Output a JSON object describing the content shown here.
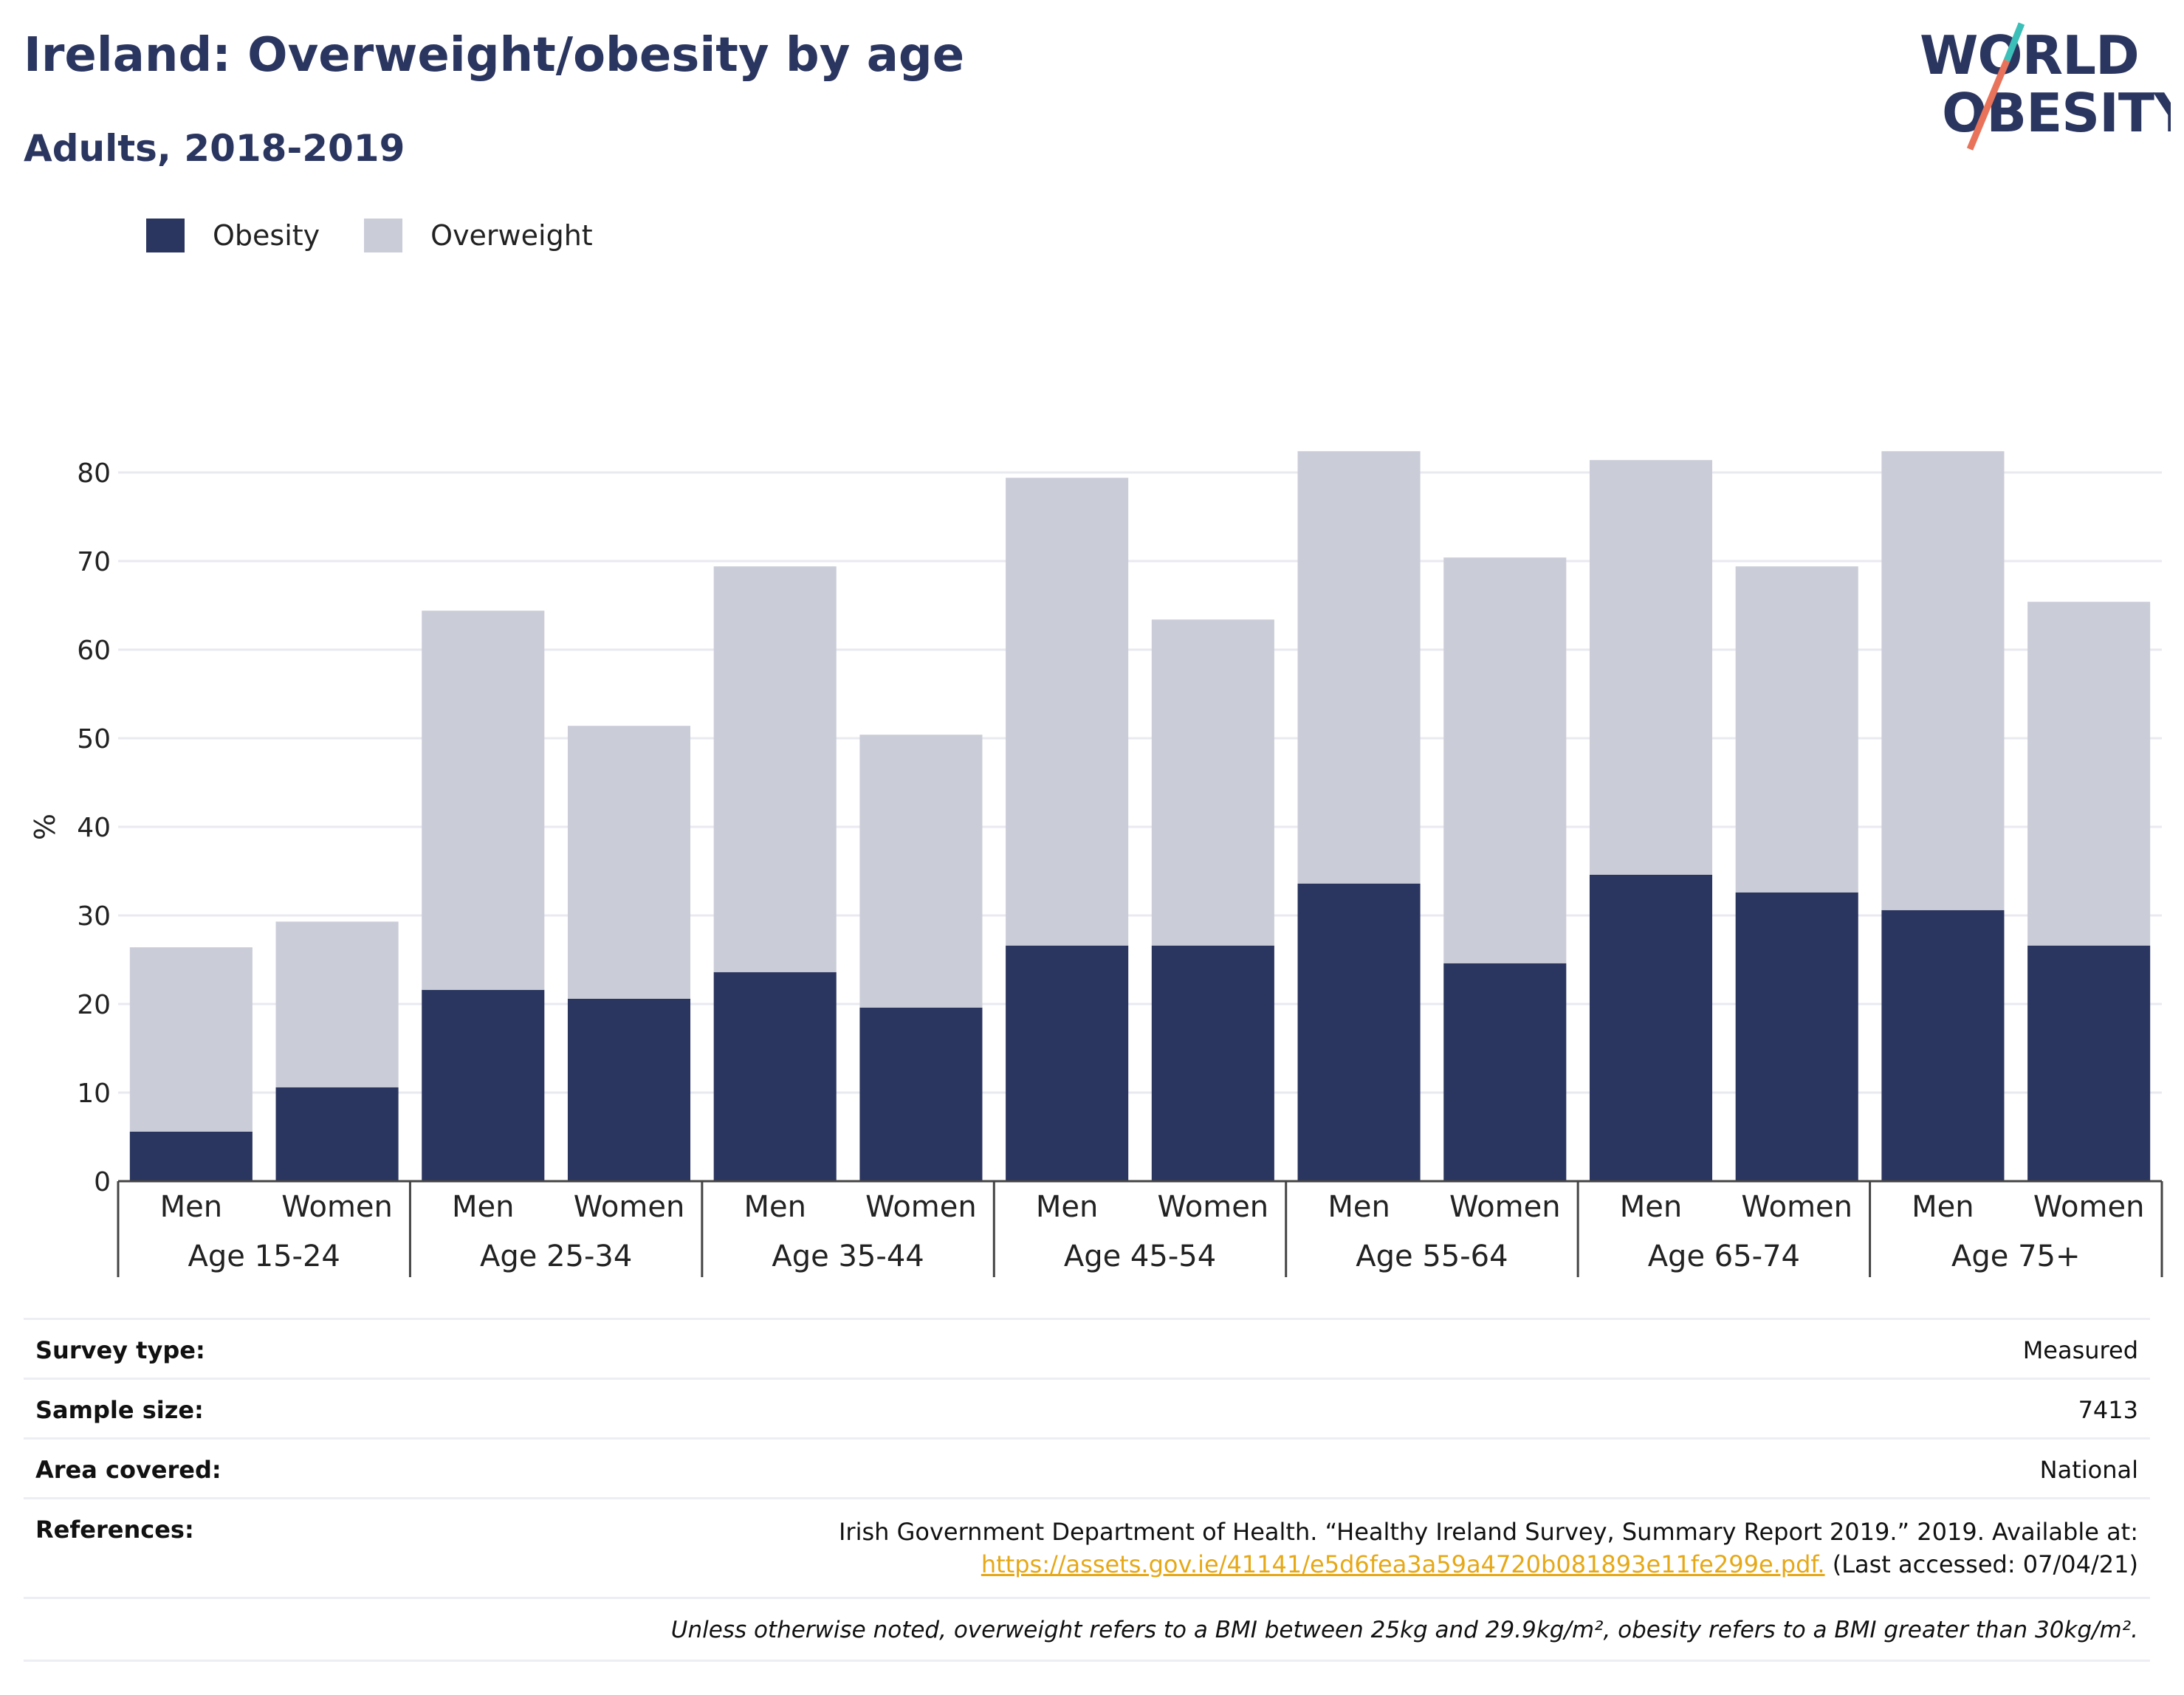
{
  "header": {
    "title": "Ireland: Overweight/obesity by age",
    "subtitle": "Adults, 2018-2019"
  },
  "logo": {
    "line1": "WORLD",
    "line2": "OBESITY"
  },
  "legend": [
    {
      "label": "Obesity",
      "color": "#2b3660"
    },
    {
      "label": "Overweight",
      "color": "#cacdd8"
    }
  ],
  "chart_data": {
    "type": "bar",
    "stacked": true,
    "ylabel": "%",
    "ylim": [
      0,
      90
    ],
    "yticks": [
      0,
      10,
      20,
      30,
      40,
      50,
      60,
      70,
      80
    ],
    "grid": true,
    "legend_position": "top-left",
    "groups": [
      "Age 15-24",
      "Age 25-34",
      "Age 35-44",
      "Age 45-54",
      "Age 55-64",
      "Age 65-74",
      "Age 75+"
    ],
    "subcategories": [
      "Men",
      "Women"
    ],
    "series": [
      {
        "name": "Obesity",
        "color": "#2b3660",
        "values": [
          5.6,
          10.6,
          21.6,
          20.6,
          23.6,
          19.6,
          26.6,
          26.6,
          33.6,
          24.6,
          34.6,
          32.6,
          30.6,
          26.6
        ]
      },
      {
        "name": "Overweight",
        "color": "#cacdd8",
        "values": [
          20.8,
          18.7,
          42.8,
          30.8,
          45.8,
          30.8,
          52.8,
          36.8,
          48.8,
          45.8,
          46.8,
          36.8,
          51.8,
          38.8
        ]
      }
    ]
  },
  "info": {
    "survey_type_label": "Survey type:",
    "survey_type_value": "Measured",
    "sample_size_label": "Sample size:",
    "sample_size_value": "7413",
    "area_label": "Area covered:",
    "area_value": "National",
    "references_label": "References:",
    "references_text": "Irish Government Department of Health. “Healthy Ireland Survey, Summary Report 2019.” 2019. Available at:",
    "references_link": "https://assets.gov.ie/41141/e5d6fea3a59a4720b081893e11fe299e.pdf.",
    "references_accessed": "(Last accessed: 07/04/21)",
    "footnote": "Unless otherwise noted, overweight refers to a BMI between 25kg and 29.9kg/m², obesity refers to a BMI greater than 30kg/m²."
  }
}
